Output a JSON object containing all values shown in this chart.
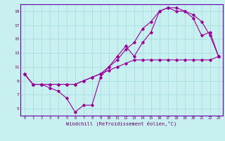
{
  "xlabel": "Windchill (Refroidissement éolien,°C)",
  "bg_color": "#c8f0f0",
  "grid_color": "#aadddd",
  "line_color": "#990099",
  "xlim": [
    -0.5,
    23.5
  ],
  "ylim": [
    4,
    20
  ],
  "xticks": [
    0,
    1,
    2,
    3,
    4,
    5,
    6,
    7,
    8,
    9,
    10,
    11,
    12,
    13,
    14,
    15,
    16,
    17,
    18,
    19,
    20,
    21,
    22,
    23
  ],
  "yticks": [
    5,
    7,
    9,
    11,
    13,
    15,
    17,
    19
  ],
  "line1_x": [
    0,
    1,
    2,
    3,
    4,
    5,
    6,
    7,
    8,
    9,
    10,
    11,
    12,
    13,
    14,
    15,
    16,
    17,
    18,
    19,
    20,
    21,
    22,
    23
  ],
  "line1_y": [
    10.0,
    8.5,
    8.5,
    8.5,
    8.5,
    8.5,
    8.5,
    9.0,
    9.5,
    10.0,
    10.5,
    11.0,
    11.5,
    12.0,
    12.0,
    12.0,
    12.0,
    12.0,
    12.0,
    12.0,
    12.0,
    12.0,
    12.0,
    12.5
  ],
  "line2_x": [
    0,
    1,
    2,
    3,
    4,
    5,
    6,
    7,
    8,
    9,
    10,
    11,
    12,
    13,
    14,
    15,
    16,
    17,
    18,
    19,
    20,
    21,
    22,
    23
  ],
  "line2_y": [
    10.0,
    8.5,
    8.5,
    8.0,
    7.5,
    6.5,
    4.5,
    5.5,
    5.5,
    9.5,
    11.0,
    12.5,
    14.0,
    12.5,
    14.5,
    16.0,
    19.0,
    19.5,
    19.5,
    19.0,
    18.0,
    15.5,
    16.0,
    12.5
  ],
  "line3_x": [
    0,
    1,
    2,
    3,
    4,
    5,
    6,
    7,
    8,
    9,
    10,
    11,
    12,
    13,
    14,
    15,
    16,
    17,
    18,
    19,
    20,
    21,
    22,
    23
  ],
  "line3_y": [
    10.0,
    8.5,
    8.5,
    8.5,
    8.5,
    8.5,
    8.5,
    9.0,
    9.5,
    10.0,
    11.0,
    12.0,
    13.5,
    14.5,
    16.5,
    17.5,
    19.0,
    19.5,
    19.0,
    19.0,
    18.5,
    17.5,
    15.5,
    12.5
  ]
}
